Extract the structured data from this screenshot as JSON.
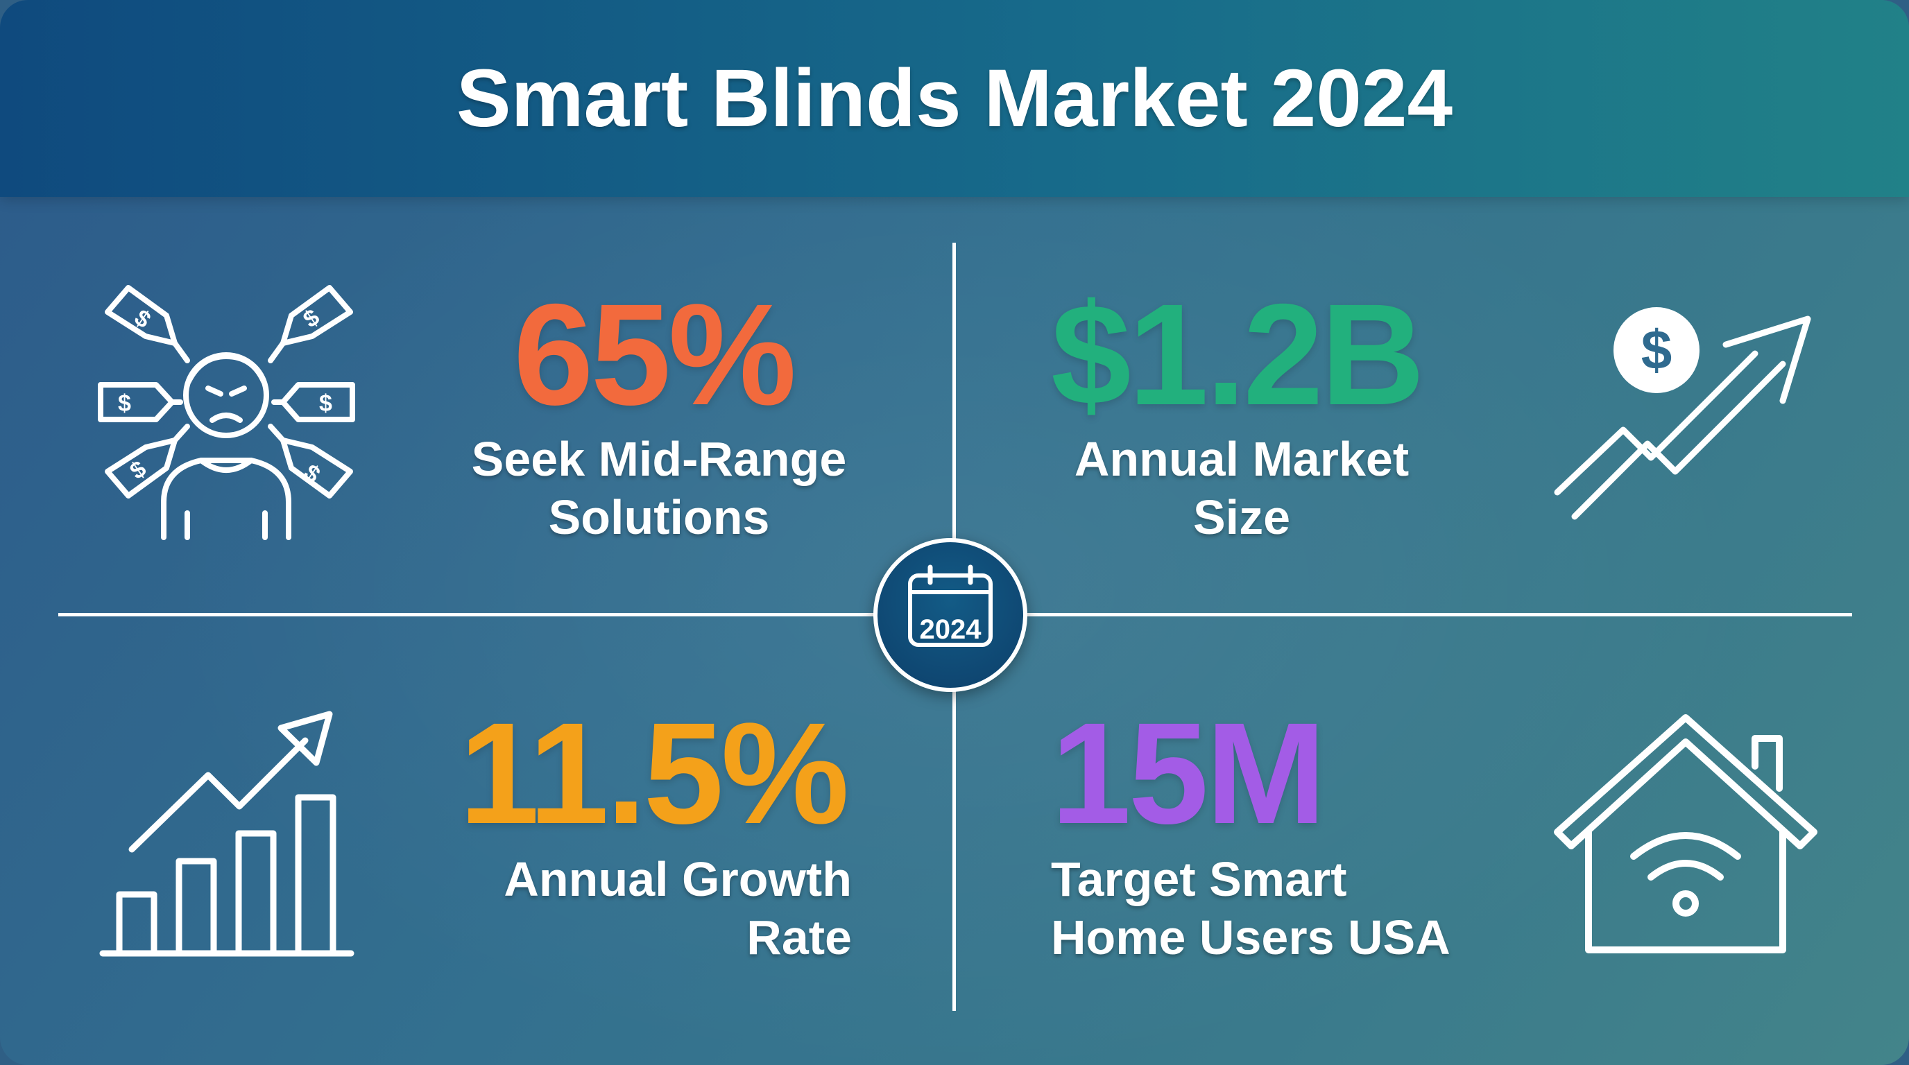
{
  "title": "Smart Blinds Market 2024",
  "center_badge": {
    "year": "2024",
    "icon": "calendar-icon"
  },
  "stats": {
    "mid_range": {
      "value": "65%",
      "label": "Seek Mid-Range Solutions",
      "color": "#f26a3d",
      "icon": "frustrated-person-price-tags-icon"
    },
    "market_size": {
      "value": "$1.2B",
      "label": "Annual Market Size",
      "color": "#22b07d",
      "icon": "dollar-growth-arrow-icon"
    },
    "growth_rate": {
      "value": "11.5%",
      "label": "Annual Growth Rate",
      "color": "#f4a11a",
      "icon": "bar-chart-growth-icon"
    },
    "target_users": {
      "value": "15M",
      "label": "Target Smart Home Users USA",
      "color": "#a35ce6",
      "icon": "smart-home-wifi-icon"
    }
  }
}
